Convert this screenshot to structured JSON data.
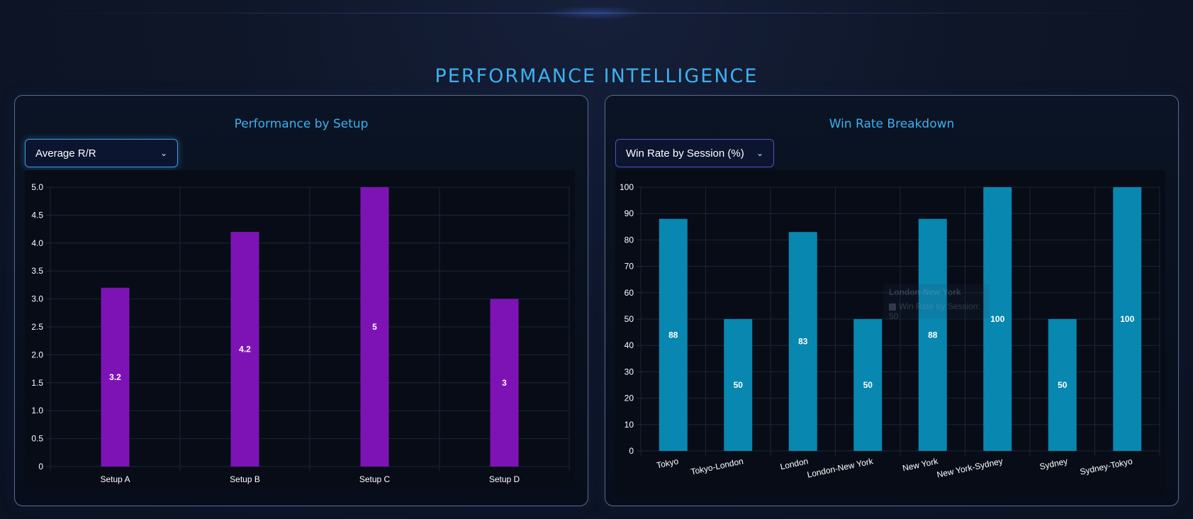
{
  "page": {
    "title": "PERFORMANCE INTELLIGENCE"
  },
  "left_panel": {
    "title": "Performance by Setup",
    "dropdown_value": "Average R/R"
  },
  "right_panel": {
    "title": "Win Rate Breakdown",
    "dropdown_value": "Win Rate by Session (%)",
    "tooltip": {
      "title": "London-New York",
      "body": "Win Rate by Session: 50"
    }
  },
  "colors": {
    "accent": "#3fb0ef",
    "bar_purple": "#7e13b5",
    "bar_teal": "#0887b0",
    "grid": "#1b2638",
    "tick": "#ffffff"
  },
  "chart_data": [
    {
      "type": "bar",
      "title": "Performance by Setup",
      "categories": [
        "Setup A",
        "Setup B",
        "Setup C",
        "Setup D"
      ],
      "values": [
        3.2,
        4.2,
        5,
        3
      ],
      "data_labels": [
        "3.2",
        "4.2",
        "5",
        "3"
      ],
      "ylim": [
        0,
        5
      ],
      "yticks": [
        "0",
        "0.5",
        "1.0",
        "1.5",
        "2.0",
        "2.5",
        "3.0",
        "3.5",
        "4.0",
        "4.5",
        "5.0"
      ],
      "grid": true,
      "legend": "none",
      "color": "#7e13b5"
    },
    {
      "type": "bar",
      "title": "Win Rate Breakdown",
      "categories": [
        "Tokyo",
        "Tokyo-London",
        "London",
        "London-New York",
        "New York",
        "New York-Sydney",
        "Sydney",
        "Sydney-Tokyo"
      ],
      "values": [
        88,
        50,
        83,
        50,
        88,
        100,
        50,
        100
      ],
      "data_labels": [
        "88",
        "50",
        "83",
        "50",
        "88",
        "100",
        "50",
        "100"
      ],
      "ylim": [
        0,
        100
      ],
      "yticks": [
        "0",
        "10",
        "20",
        "30",
        "40",
        "50",
        "60",
        "70",
        "80",
        "90",
        "100"
      ],
      "grid": true,
      "legend": "none",
      "color": "#0887b0"
    }
  ]
}
